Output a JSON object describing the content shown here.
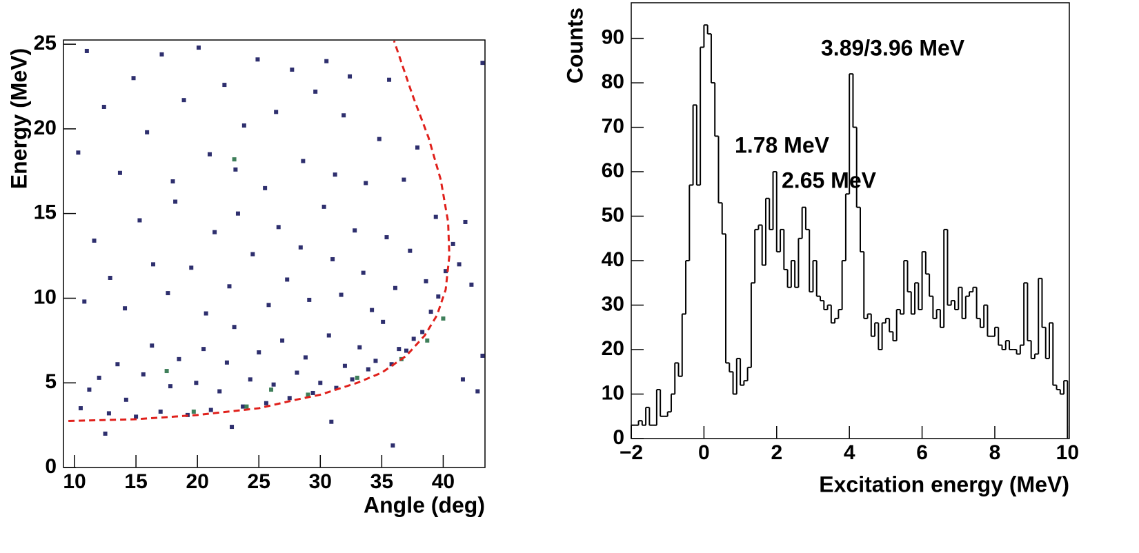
{
  "chart_data": [
    {
      "type": "scatter",
      "x_label": "Angle (deg)",
      "y_label": "Energy (MeV)",
      "xlim": [
        9.1,
        43.4
      ],
      "ylim": [
        0,
        25.25
      ],
      "xticks": [
        10,
        15,
        20,
        25,
        30,
        35,
        40
      ],
      "yticks": [
        0,
        5,
        10,
        15,
        20,
        25
      ],
      "series": [
        {
          "color": "#2e2f6e",
          "marker": "square",
          "x": [
            10.5,
            11.2,
            12.0,
            12.8,
            13.5,
            14.2,
            15.0,
            15.6,
            16.3,
            17.0,
            17.8,
            18.5,
            19.2,
            19.9,
            20.5,
            21.1,
            21.8,
            22.4,
            23.0,
            23.7,
            24.3,
            25.0,
            25.6,
            26.2,
            26.9,
            27.5,
            28.1,
            28.8,
            29.4,
            30.0,
            30.7,
            31.3,
            32.0,
            32.6,
            33.2,
            33.9,
            34.5,
            35.1,
            35.8,
            36.4,
            37.0,
            37.6,
            38.3,
            39.0,
            39.6,
            40.2,
            40.8,
            41.3,
            41.8,
            42.3,
            10.8,
            11.6,
            12.9,
            14.1,
            15.3,
            16.4,
            17.6,
            18.2,
            19.5,
            20.7,
            21.4,
            22.6,
            23.3,
            24.5,
            25.8,
            26.6,
            27.3,
            28.4,
            29.1,
            30.3,
            31.0,
            31.7,
            32.8,
            33.5,
            34.2,
            35.4,
            36.1,
            37.3,
            38.6,
            39.4,
            10.3,
            11.0,
            12.4,
            13.7,
            14.8,
            15.9,
            17.1,
            18.0,
            18.9,
            20.1,
            21.0,
            22.2,
            23.1,
            23.8,
            24.9,
            25.5,
            26.4,
            27.7,
            28.6,
            29.6,
            30.5,
            31.2,
            31.9,
            32.4,
            33.7,
            34.8,
            35.6,
            36.8,
            37.9,
            43.2,
            35.9,
            42.8,
            43.2,
            41.6,
            12.5,
            22.8,
            30.9
          ],
          "values": [
            3.5,
            4.6,
            5.3,
            3.2,
            6.1,
            4.0,
            3.0,
            5.5,
            7.2,
            3.3,
            4.8,
            6.4,
            3.1,
            5.0,
            7.0,
            3.4,
            4.5,
            6.2,
            8.3,
            3.6,
            5.2,
            6.8,
            3.8,
            4.9,
            7.5,
            4.1,
            5.6,
            6.5,
            4.4,
            5.0,
            7.8,
            4.7,
            6.0,
            5.2,
            7.1,
            5.8,
            6.3,
            8.6,
            6.1,
            7.0,
            6.9,
            7.6,
            8.0,
            9.2,
            10.1,
            11.6,
            13.2,
            12.0,
            14.5,
            10.8,
            9.8,
            13.4,
            11.2,
            9.4,
            14.6,
            12.0,
            10.3,
            15.7,
            11.8,
            9.1,
            13.9,
            10.7,
            15.0,
            12.6,
            9.6,
            14.2,
            11.1,
            13.0,
            9.9,
            15.4,
            12.3,
            10.2,
            14.0,
            11.5,
            9.3,
            13.6,
            10.6,
            12.8,
            11.0,
            14.8,
            18.6,
            24.6,
            21.3,
            17.4,
            23.0,
            19.8,
            24.4,
            16.9,
            21.7,
            24.8,
            18.5,
            22.6,
            17.6,
            20.2,
            24.1,
            16.5,
            21.0,
            23.5,
            18.1,
            22.2,
            24.0,
            17.3,
            20.8,
            23.1,
            16.8,
            19.4,
            22.9,
            17.0,
            18.9,
            23.9,
            1.3,
            4.5,
            6.6,
            5.2,
            2.0,
            2.4,
            2.7
          ]
        },
        {
          "color": "#3f7f5a",
          "marker": "square",
          "x": [
            19.7,
            24.0,
            29.0,
            33.0,
            36.6,
            38.7,
            17.5,
            26.0,
            23.0,
            40.0
          ],
          "values": [
            3.3,
            3.6,
            4.3,
            5.3,
            6.4,
            7.5,
            5.7,
            4.6,
            18.2,
            8.8
          ]
        },
        {
          "color": "#e0201b",
          "line_style": "dashed",
          "x": [
            9.5,
            15,
            20,
            25,
            28,
            30,
            33,
            35,
            37,
            38.5,
            39.5,
            40.2,
            40.5,
            40.4,
            39.8,
            38.8,
            37.5,
            36
          ],
          "values": [
            2.75,
            2.85,
            3.1,
            3.5,
            4.0,
            4.3,
            5.0,
            5.6,
            6.6,
            7.8,
            9.0,
            10.5,
            12.5,
            14.5,
            17,
            19.5,
            22,
            25.2
          ]
        }
      ]
    },
    {
      "type": "histogram",
      "x_label": "Excitation energy (MeV)",
      "y_label": "Counts",
      "xlim": [
        -2,
        10.05
      ],
      "ylim": [
        0,
        98
      ],
      "xticks": [
        {
          "value": -2,
          "label": "−2"
        },
        0,
        2,
        4,
        6,
        8,
        10
      ],
      "yticks": [
        0,
        10,
        20,
        30,
        40,
        50,
        60,
        70,
        80,
        90
      ],
      "color": "#000000",
      "annotations": [
        "3.89/3.96 MeV",
        "1.78 MeV",
        "2.65 MeV"
      ],
      "bins": [
        -2.0,
        -1.9,
        -1.8,
        -1.7,
        -1.6,
        -1.5,
        -1.4,
        -1.3,
        -1.2,
        -1.1,
        -1.0,
        -0.9,
        -0.8,
        -0.7,
        -0.6,
        -0.5,
        -0.4,
        -0.3,
        -0.2,
        -0.1,
        0.0,
        0.1,
        0.2,
        0.3,
        0.4,
        0.5,
        0.6,
        0.7,
        0.8,
        0.9,
        1.0,
        1.1,
        1.2,
        1.3,
        1.4,
        1.5,
        1.6,
        1.7,
        1.8,
        1.9,
        2.0,
        2.1,
        2.2,
        2.3,
        2.4,
        2.5,
        2.6,
        2.7,
        2.8,
        2.9,
        3.0,
        3.1,
        3.2,
        3.3,
        3.4,
        3.5,
        3.6,
        3.7,
        3.8,
        3.9,
        4.0,
        4.1,
        4.2,
        4.3,
        4.4,
        4.5,
        4.6,
        4.7,
        4.8,
        4.9,
        5.0,
        5.1,
        5.2,
        5.3,
        5.4,
        5.5,
        5.6,
        5.7,
        5.8,
        5.9,
        6.0,
        6.1,
        6.2,
        6.3,
        6.4,
        6.5,
        6.6,
        6.7,
        6.8,
        6.9,
        7.0,
        7.1,
        7.2,
        7.3,
        7.4,
        7.5,
        7.6,
        7.7,
        7.8,
        7.9,
        8.0,
        8.1,
        8.2,
        8.3,
        8.4,
        8.5,
        8.6,
        8.7,
        8.8,
        8.9,
        9.0,
        9.1,
        9.2,
        9.3,
        9.4,
        9.5,
        9.6,
        9.7,
        9.8,
        9.9,
        10.0
      ],
      "values": [
        3,
        3,
        4,
        3,
        7,
        3,
        3,
        11,
        5,
        5,
        6,
        10,
        17,
        14,
        28,
        40,
        57,
        75,
        57,
        88,
        93,
        91,
        80,
        68,
        53,
        46,
        17,
        15,
        10,
        18,
        12,
        13,
        16,
        35,
        47,
        48,
        39,
        54,
        47,
        60,
        42,
        47,
        38,
        34,
        40,
        34,
        45,
        52,
        47,
        33,
        40,
        32,
        31,
        29,
        30,
        26,
        27,
        29,
        40,
        55,
        82,
        70,
        52,
        42,
        27,
        28,
        23,
        26,
        20,
        26,
        27,
        24,
        22,
        29,
        28,
        40,
        33,
        28,
        35,
        29,
        42,
        37,
        32,
        27,
        29,
        25,
        47,
        30,
        31,
        29,
        34,
        27,
        32,
        33,
        34,
        27,
        25,
        30,
        23,
        23,
        25,
        21,
        20,
        22,
        20,
        20,
        19,
        21,
        35,
        22,
        18,
        19,
        36,
        25,
        18,
        26,
        12,
        11,
        10,
        13
      ]
    }
  ]
}
